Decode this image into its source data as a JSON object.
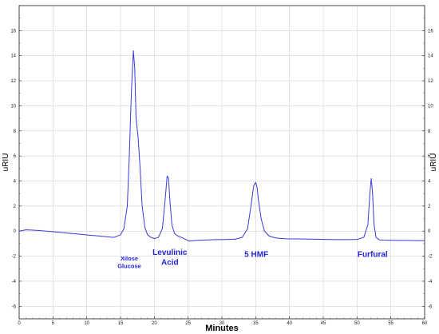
{
  "chart_data": {
    "type": "line",
    "title": "",
    "xlabel": "Minutes",
    "ylabel": "uRIU",
    "ylabel_right": "uRIU",
    "xlim": [
      0,
      60
    ],
    "ylim": [
      -7,
      18
    ],
    "x_ticks": [
      0,
      5,
      10,
      15,
      20,
      25,
      30,
      35,
      40,
      45,
      50,
      55,
      60
    ],
    "y_ticks": [
      -6,
      -4,
      -2,
      0,
      2,
      4,
      6,
      8,
      10,
      12,
      14,
      16
    ],
    "grid": true,
    "legend": "none",
    "colors": {
      "trace": "#3a3ad6",
      "labels": "#2323d9",
      "grid": "#c8c8c8",
      "axis": "#1a1a1a",
      "xlabel": "#2323d9"
    },
    "series": [
      {
        "x": [
          0,
          1,
          2,
          3,
          4,
          5,
          6,
          7,
          8,
          9,
          10,
          11,
          12,
          13,
          14,
          15,
          15.5,
          16,
          16.3,
          16.6,
          16.9,
          17.1,
          17.3,
          17.6,
          17.9,
          18.2,
          18.6,
          19,
          19.5,
          20,
          20.6,
          21.2,
          21.6,
          21.9,
          22.1,
          22.3,
          22.6,
          23,
          23.5,
          24,
          24.6,
          25.2,
          26,
          27,
          28,
          29,
          30,
          31,
          32,
          33,
          33.8,
          34.3,
          34.7,
          35,
          35.2,
          35.4,
          35.8,
          36.3,
          37,
          38,
          39,
          40,
          41,
          42,
          43,
          44,
          45,
          46,
          47,
          48,
          49,
          50,
          51,
          51.6,
          51.9,
          52.1,
          52.3,
          52.5,
          52.8,
          53.3,
          54,
          55,
          56,
          57,
          58,
          59,
          60
        ],
        "y": [
          0,
          0.1,
          0.08,
          0.05,
          0,
          -0.05,
          -0.1,
          -0.15,
          -0.2,
          -0.25,
          -0.3,
          -0.35,
          -0.4,
          -0.45,
          -0.5,
          -0.3,
          0.2,
          2,
          6,
          11,
          14.4,
          13,
          9,
          7.5,
          5,
          2,
          0.3,
          -0.3,
          -0.5,
          -0.6,
          -0.5,
          0.2,
          2.5,
          4.4,
          4.2,
          2.5,
          0.5,
          -0.2,
          -0.4,
          -0.5,
          -0.65,
          -0.8,
          -0.75,
          -0.72,
          -0.7,
          -0.68,
          -0.68,
          -0.66,
          -0.64,
          -0.5,
          0.2,
          2,
          3.6,
          3.9,
          3.5,
          2.5,
          1,
          0,
          -0.4,
          -0.55,
          -0.6,
          -0.62,
          -0.62,
          -0.63,
          -0.64,
          -0.65,
          -0.66,
          -0.67,
          -0.68,
          -0.68,
          -0.68,
          -0.66,
          -0.5,
          0.5,
          3,
          4.2,
          3,
          0.6,
          -0.5,
          -0.7,
          -0.72,
          -0.73,
          -0.74,
          -0.74,
          -0.75,
          -0.76,
          -0.76
        ]
      }
    ],
    "annotations": [
      {
        "lines": [
          "Xilose",
          "Glucose"
        ],
        "x": 16.3,
        "y": -2.35,
        "size": "small"
      },
      {
        "lines": [
          "Levulinic",
          "Acid"
        ],
        "x": 22.3,
        "y": -1.9,
        "size": "large"
      },
      {
        "lines": [
          "5 HMF"
        ],
        "x": 35.1,
        "y": -2.05,
        "size": "large"
      },
      {
        "lines": [
          "Furfural"
        ],
        "x": 52.3,
        "y": -2.05,
        "size": "large"
      }
    ]
  }
}
